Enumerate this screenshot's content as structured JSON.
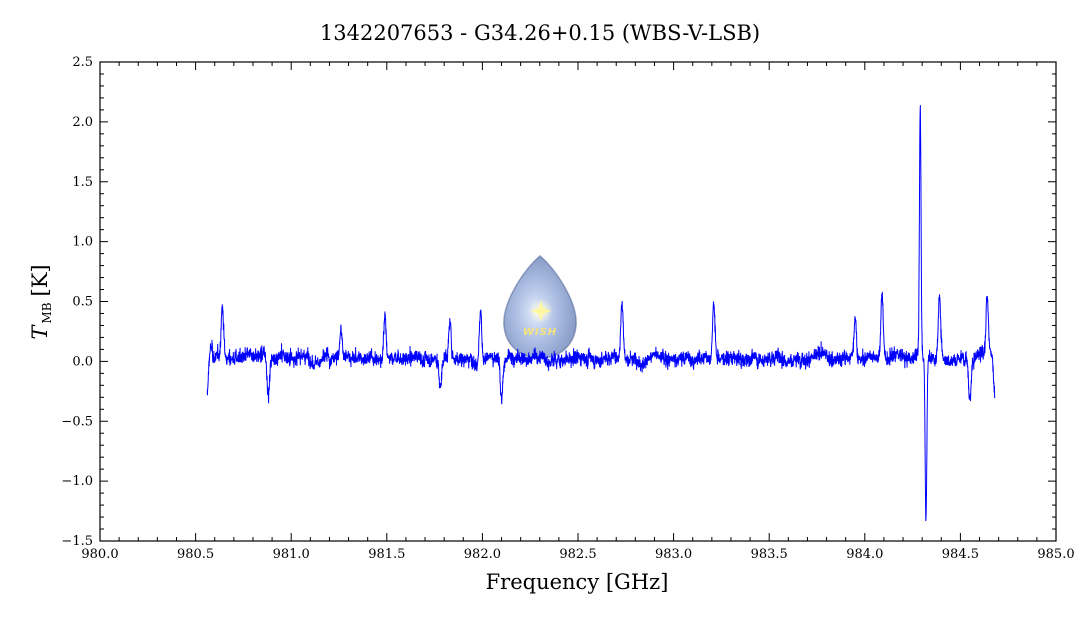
{
  "chart_data": {
    "type": "line",
    "title": "1342207653 - G34.26+0.15 (WBS-V-LSB)",
    "xlabel": "Frequency [GHz]",
    "ylabel_main": "T",
    "ylabel_sub": "MB",
    "ylabel_unit": "[K]",
    "xlim": [
      980.0,
      985.0
    ],
    "ylim": [
      -1.5,
      2.5
    ],
    "xticks": [
      980.0,
      980.5,
      981.0,
      981.5,
      982.0,
      982.5,
      983.0,
      983.5,
      984.0,
      984.5,
      985.0
    ],
    "yticks": [
      2.5,
      2.0,
      1.5,
      1.0,
      0.5,
      0.0,
      -0.5,
      -1.0,
      -1.5
    ],
    "xtick_labels": [
      "980.0",
      "980.5",
      "981.0",
      "981.5",
      "982.0",
      "982.5",
      "983.0",
      "983.5",
      "984.0",
      "984.5",
      "985.0"
    ],
    "ytick_labels": [
      "2.5",
      "2.0",
      "1.5",
      "1.0",
      "0.5",
      "0.0",
      "−0.5",
      "−1.0",
      "−1.5"
    ],
    "grid": false,
    "series": [
      {
        "color": "#0000ff",
        "noise_sigma": 0.06,
        "x_range": [
          980.56,
          984.68
        ],
        "features": [
          {
            "x": 980.56,
            "value": -0.28
          },
          {
            "x": 980.58,
            "value": 0.12
          },
          {
            "x": 980.64,
            "value": 0.44
          },
          {
            "x": 980.88,
            "value": -0.27
          },
          {
            "x": 981.26,
            "value": 0.29
          },
          {
            "x": 981.49,
            "value": 0.43
          },
          {
            "x": 981.78,
            "value": -0.22
          },
          {
            "x": 981.83,
            "value": 0.36
          },
          {
            "x": 981.99,
            "value": 0.47
          },
          {
            "x": 982.1,
            "value": -0.28
          },
          {
            "x": 982.73,
            "value": 0.52
          },
          {
            "x": 983.21,
            "value": 0.51
          },
          {
            "x": 983.95,
            "value": 0.4
          },
          {
            "x": 984.09,
            "value": 0.56
          },
          {
            "x": 984.29,
            "value": 2.12
          },
          {
            "x": 984.32,
            "value": -1.3
          },
          {
            "x": 984.39,
            "value": 0.52
          },
          {
            "x": 984.55,
            "value": -0.32
          },
          {
            "x": 984.64,
            "value": 0.5
          },
          {
            "x": 984.68,
            "value": -0.26
          }
        ]
      }
    ]
  },
  "watermark": {
    "text": "WISH",
    "icon": "star-drop-logo"
  }
}
